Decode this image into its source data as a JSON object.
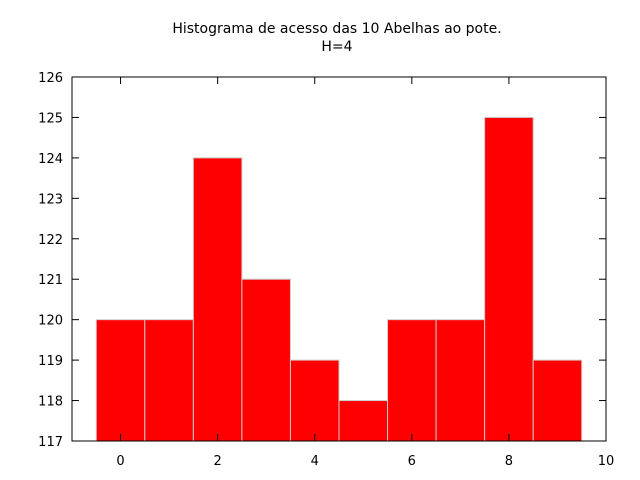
{
  "chart_data": {
    "type": "bar",
    "title": "Histograma de acesso das 10 Abelhas ao pote.",
    "subtitle": "H=4",
    "xlabel": "",
    "ylabel": "",
    "categories": [
      0,
      1,
      2,
      3,
      4,
      5,
      6,
      7,
      8,
      9
    ],
    "values": [
      120,
      120,
      124,
      121,
      119,
      118,
      120,
      120,
      125,
      119
    ],
    "xlim": [
      -1,
      10
    ],
    "ylim": [
      117,
      126
    ],
    "xticks": [
      0,
      2,
      4,
      6,
      8,
      10
    ],
    "yticks": [
      117,
      118,
      119,
      120,
      121,
      122,
      123,
      124,
      125,
      126
    ],
    "bar_color": "#ff0000",
    "bar_edge_color": "#cccccc",
    "grid": false,
    "legend": "none"
  }
}
